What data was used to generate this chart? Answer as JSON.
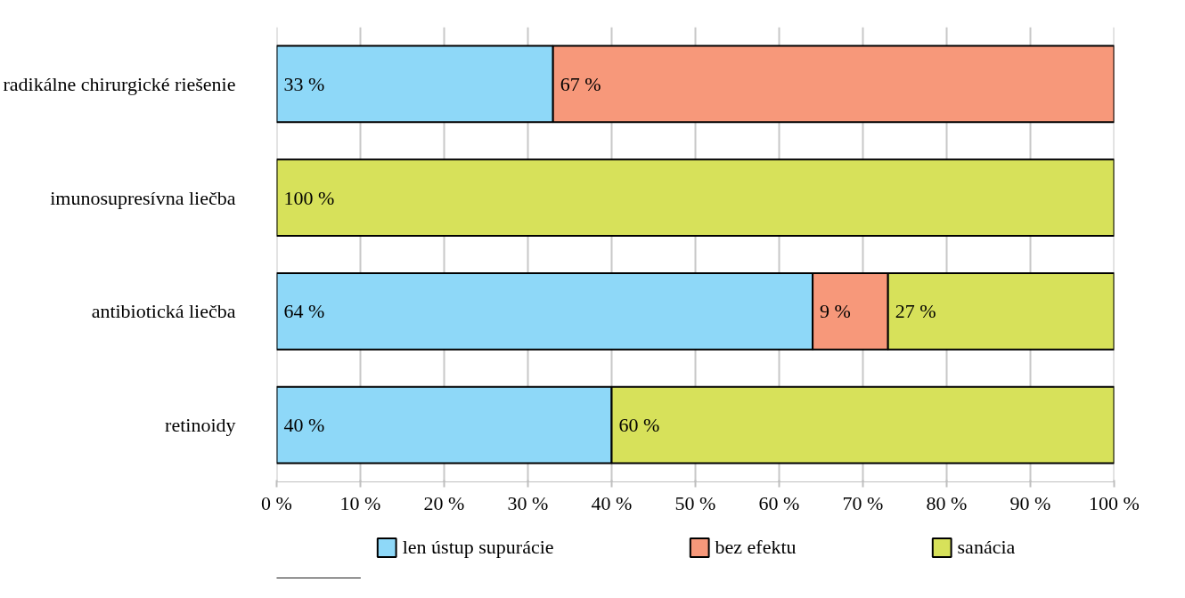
{
  "chart_data": {
    "type": "bar",
    "orientation": "horizontal",
    "stacked": true,
    "categories": [
      "radikálne chirurgické riešenie",
      "imunosupresívna liečba",
      "antibiotická liečba",
      "retinoidy"
    ],
    "series": [
      {
        "name": "len ústup supurácie",
        "color": "#8ed8f8",
        "values": [
          33,
          null,
          64,
          40
        ],
        "value_labels": [
          "33 %",
          null,
          "64 %",
          "40 %"
        ]
      },
      {
        "name": "bez efektu",
        "color": "#f7987a",
        "values": [
          67,
          null,
          9,
          null
        ],
        "value_labels": [
          "67 %",
          null,
          "9 %",
          null
        ]
      },
      {
        "name": "sanácia",
        "color": "#d7e15a",
        "values": [
          null,
          100,
          27,
          60
        ],
        "value_labels": [
          null,
          "100 %",
          "27 %",
          "60 %"
        ]
      }
    ],
    "xlim": [
      0,
      100
    ],
    "xticks": [
      {
        "value": 0,
        "label": "0 %"
      },
      {
        "value": 10,
        "label": "10 %"
      },
      {
        "value": 20,
        "label": "20 %"
      },
      {
        "value": 30,
        "label": "30 %"
      },
      {
        "value": 40,
        "label": "40 %"
      },
      {
        "value": 50,
        "label": "50 %"
      },
      {
        "value": 60,
        "label": "60 %"
      },
      {
        "value": 70,
        "label": "70 %"
      },
      {
        "value": 80,
        "label": "80 %"
      },
      {
        "value": 90,
        "label": "90 %"
      },
      {
        "value": 100,
        "label": "100 %"
      }
    ],
    "grid": "x",
    "legend": "bottom"
  }
}
